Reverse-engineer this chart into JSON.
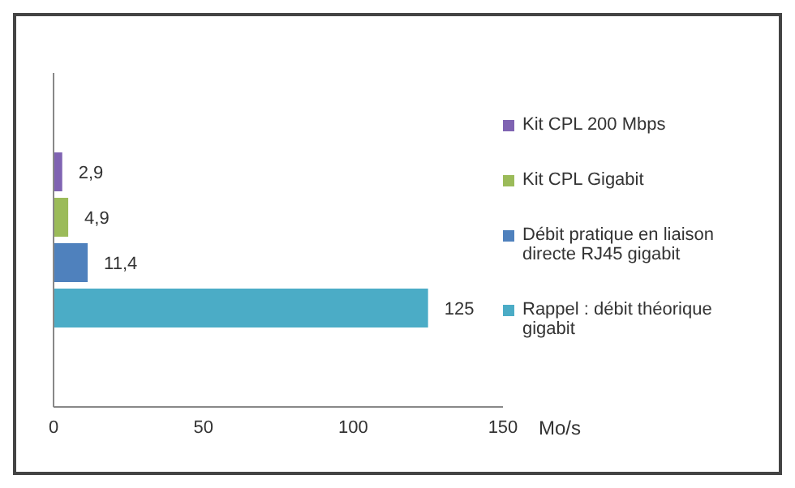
{
  "chart_data": {
    "type": "bar",
    "orientation": "horizontal",
    "categories": [
      null
    ],
    "xlabel": "Mo/s",
    "xlim": [
      0,
      150
    ],
    "xticks": [
      0,
      50,
      100,
      150
    ],
    "legend": "right",
    "series": [
      {
        "name": "Kit CPL 200 Mbps",
        "color": "#7f63b2",
        "values": [
          2.9
        ],
        "value_labels": [
          "2,9"
        ]
      },
      {
        "name": "Kit CPL Gigabit",
        "color": "#9bbb59",
        "values": [
          4.9
        ],
        "value_labels": [
          "4,9"
        ]
      },
      {
        "name": "Débit pratique  en liaison directe RJ45 gigabit",
        "color": "#4f81bd",
        "values": [
          11.4
        ],
        "value_labels": [
          "11,4"
        ]
      },
      {
        "name": "Rappel : débit théorique gigabit",
        "color": "#4bacc6",
        "values": [
          125
        ],
        "value_labels": [
          "125"
        ]
      }
    ]
  }
}
